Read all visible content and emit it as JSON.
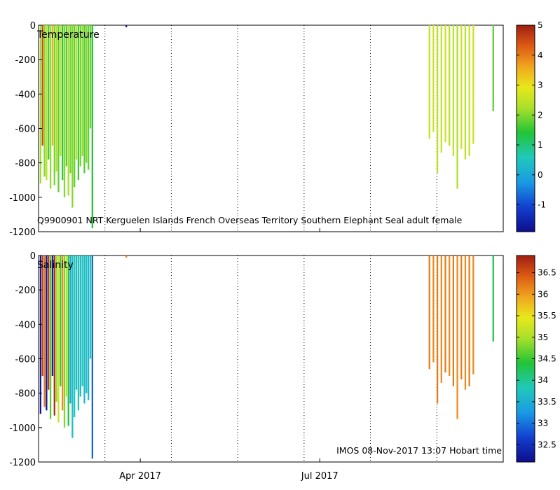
{
  "chart_data": [
    {
      "type": "heatmap",
      "title": "Temperature",
      "annotation": "Q9900901  NRT  Kerguelen  Islands  French  Overseas  Territory  Southern  Elephant  Seal  adult  female",
      "ylim": [
        -1200,
        0
      ],
      "yticks": [
        0,
        -200,
        -400,
        -600,
        -800,
        -1000,
        -1200
      ],
      "ytick_labels": [
        "0",
        "-200",
        "-400",
        "-600",
        "-800",
        "-1000",
        "-1200"
      ],
      "xlim_days": [
        0,
        233
      ],
      "colorbar": {
        "min": -1.9,
        "max": 5,
        "ticks": [
          -1,
          0,
          1,
          2,
          3,
          4,
          5
        ]
      },
      "profiles": [
        {
          "day": 1,
          "depth": -920,
          "val": 2.2
        },
        {
          "day": 2,
          "depth": -700,
          "val": 4.5
        },
        {
          "day": 3,
          "depth": -880,
          "val": 2.0
        },
        {
          "day": 4,
          "depth": -900,
          "val": 2.4
        },
        {
          "day": 5,
          "depth": -780,
          "val": 1.6
        },
        {
          "day": 6,
          "depth": -950,
          "val": 2.1
        },
        {
          "day": 7,
          "depth": -700,
          "val": 3.5
        },
        {
          "day": 8,
          "depth": -930,
          "val": 1.9
        },
        {
          "day": 9,
          "depth": -850,
          "val": 2.3
        },
        {
          "day": 10,
          "depth": -970,
          "val": 1.8
        },
        {
          "day": 11,
          "depth": -760,
          "val": 2.5
        },
        {
          "day": 12,
          "depth": -900,
          "val": 1.5
        },
        {
          "day": 13,
          "depth": -1000,
          "val": 2.0
        },
        {
          "day": 14,
          "depth": -820,
          "val": 1.7
        },
        {
          "day": 15,
          "depth": -990,
          "val": 2.2
        },
        {
          "day": 16,
          "depth": -860,
          "val": 1.9
        },
        {
          "day": 17,
          "depth": -1060,
          "val": 2.0
        },
        {
          "day": 18,
          "depth": -940,
          "val": 1.8
        },
        {
          "day": 19,
          "depth": -780,
          "val": 2.4
        },
        {
          "day": 20,
          "depth": -900,
          "val": 1.6
        },
        {
          "day": 21,
          "depth": -820,
          "val": 1.9
        },
        {
          "day": 22,
          "depth": -760,
          "val": 2.1
        },
        {
          "day": 23,
          "depth": -860,
          "val": 1.7
        },
        {
          "day": 24,
          "depth": -800,
          "val": 2.0
        },
        {
          "day": 25,
          "depth": -840,
          "val": 1.8
        },
        {
          "day": 26,
          "depth": -600,
          "val": 1.9
        },
        {
          "day": 27,
          "depth": -1180,
          "val": 1.4
        },
        {
          "day": 44,
          "depth": -12,
          "val": -1.8
        },
        {
          "day": 196,
          "depth": -660,
          "val": 2.5
        },
        {
          "day": 198,
          "depth": -620,
          "val": 2.6
        },
        {
          "day": 200,
          "depth": -860,
          "val": 2.4
        },
        {
          "day": 202,
          "depth": -740,
          "val": 2.5
        },
        {
          "day": 204,
          "depth": -680,
          "val": 2.6
        },
        {
          "day": 206,
          "depth": -700,
          "val": 2.4
        },
        {
          "day": 208,
          "depth": -760,
          "val": 2.5
        },
        {
          "day": 210,
          "depth": -950,
          "val": 2.3
        },
        {
          "day": 212,
          "depth": -720,
          "val": 2.6
        },
        {
          "day": 214,
          "depth": -780,
          "val": 2.4
        },
        {
          "day": 216,
          "depth": -760,
          "val": 2.5
        },
        {
          "day": 218,
          "depth": -690,
          "val": 2.6
        },
        {
          "day": 228,
          "depth": -500,
          "val": 1.8
        }
      ]
    },
    {
      "type": "heatmap",
      "title": "Salinity",
      "annotation": "IMOS 08-Nov-2017 13:07 Hobart time",
      "ylim": [
        -1200,
        0
      ],
      "yticks": [
        0,
        -200,
        -400,
        -600,
        -800,
        -1000,
        -1200
      ],
      "ytick_labels": [
        "0",
        "-200",
        "-400",
        "-600",
        "-800",
        "-1000",
        "-1200"
      ],
      "xlim_days": [
        0,
        233
      ],
      "xticks_days": [
        51,
        141
      ],
      "xtick_labels": [
        "Apr 2017",
        "Jul 2017"
      ],
      "colorbar": {
        "min": 32.1,
        "max": 36.9,
        "ticks": [
          32.5,
          33,
          33.5,
          34,
          34.5,
          35,
          35.5,
          36,
          36.5
        ]
      },
      "profiles": [
        {
          "day": 1,
          "depth": -920,
          "val": 32.2
        },
        {
          "day": 2,
          "depth": -700,
          "val": 36.6
        },
        {
          "day": 3,
          "depth": -880,
          "val": 36.2
        },
        {
          "day": 4,
          "depth": -900,
          "val": 32.2
        },
        {
          "day": 5,
          "depth": -780,
          "val": 36.7
        },
        {
          "day": 6,
          "depth": -950,
          "val": 34.6
        },
        {
          "day": 7,
          "depth": -700,
          "val": 32.3
        },
        {
          "day": 8,
          "depth": -930,
          "val": 36.8
        },
        {
          "day": 9,
          "depth": -850,
          "val": 34.9
        },
        {
          "day": 10,
          "depth": -970,
          "val": 35.2
        },
        {
          "day": 11,
          "depth": -760,
          "val": 34.5
        },
        {
          "day": 12,
          "depth": -900,
          "val": 36.1
        },
        {
          "day": 13,
          "depth": -1000,
          "val": 34.8
        },
        {
          "day": 14,
          "depth": -820,
          "val": 35.1
        },
        {
          "day": 15,
          "depth": -990,
          "val": 34.4
        },
        {
          "day": 16,
          "depth": -860,
          "val": 33.4
        },
        {
          "day": 17,
          "depth": -1060,
          "val": 33.7
        },
        {
          "day": 18,
          "depth": -940,
          "val": 33.8
        },
        {
          "day": 19,
          "depth": -780,
          "val": 33.6
        },
        {
          "day": 20,
          "depth": -900,
          "val": 33.9
        },
        {
          "day": 21,
          "depth": -820,
          "val": 33.6
        },
        {
          "day": 22,
          "depth": -760,
          "val": 33.8
        },
        {
          "day": 23,
          "depth": -860,
          "val": 33.6
        },
        {
          "day": 24,
          "depth": -800,
          "val": 33.7
        },
        {
          "day": 25,
          "depth": -840,
          "val": 33.6
        },
        {
          "day": 26,
          "depth": -600,
          "val": 33.8
        },
        {
          "day": 27,
          "depth": -1180,
          "val": 32.9
        },
        {
          "day": 44,
          "depth": -12,
          "val": 36.2
        },
        {
          "day": 196,
          "depth": -660,
          "val": 36.2
        },
        {
          "day": 198,
          "depth": -620,
          "val": 36.1
        },
        {
          "day": 200,
          "depth": -860,
          "val": 36.2
        },
        {
          "day": 202,
          "depth": -740,
          "val": 36.1
        },
        {
          "day": 204,
          "depth": -680,
          "val": 36.2
        },
        {
          "day": 206,
          "depth": -700,
          "val": 36.1
        },
        {
          "day": 208,
          "depth": -760,
          "val": 36.2
        },
        {
          "day": 210,
          "depth": -950,
          "val": 36.1
        },
        {
          "day": 212,
          "depth": -720,
          "val": 36.2
        },
        {
          "day": 214,
          "depth": -780,
          "val": 36.1
        },
        {
          "day": 216,
          "depth": -760,
          "val": 36.2
        },
        {
          "day": 218,
          "depth": -690,
          "val": 36.1
        },
        {
          "day": 228,
          "depth": -500,
          "val": 34.3
        }
      ]
    }
  ]
}
